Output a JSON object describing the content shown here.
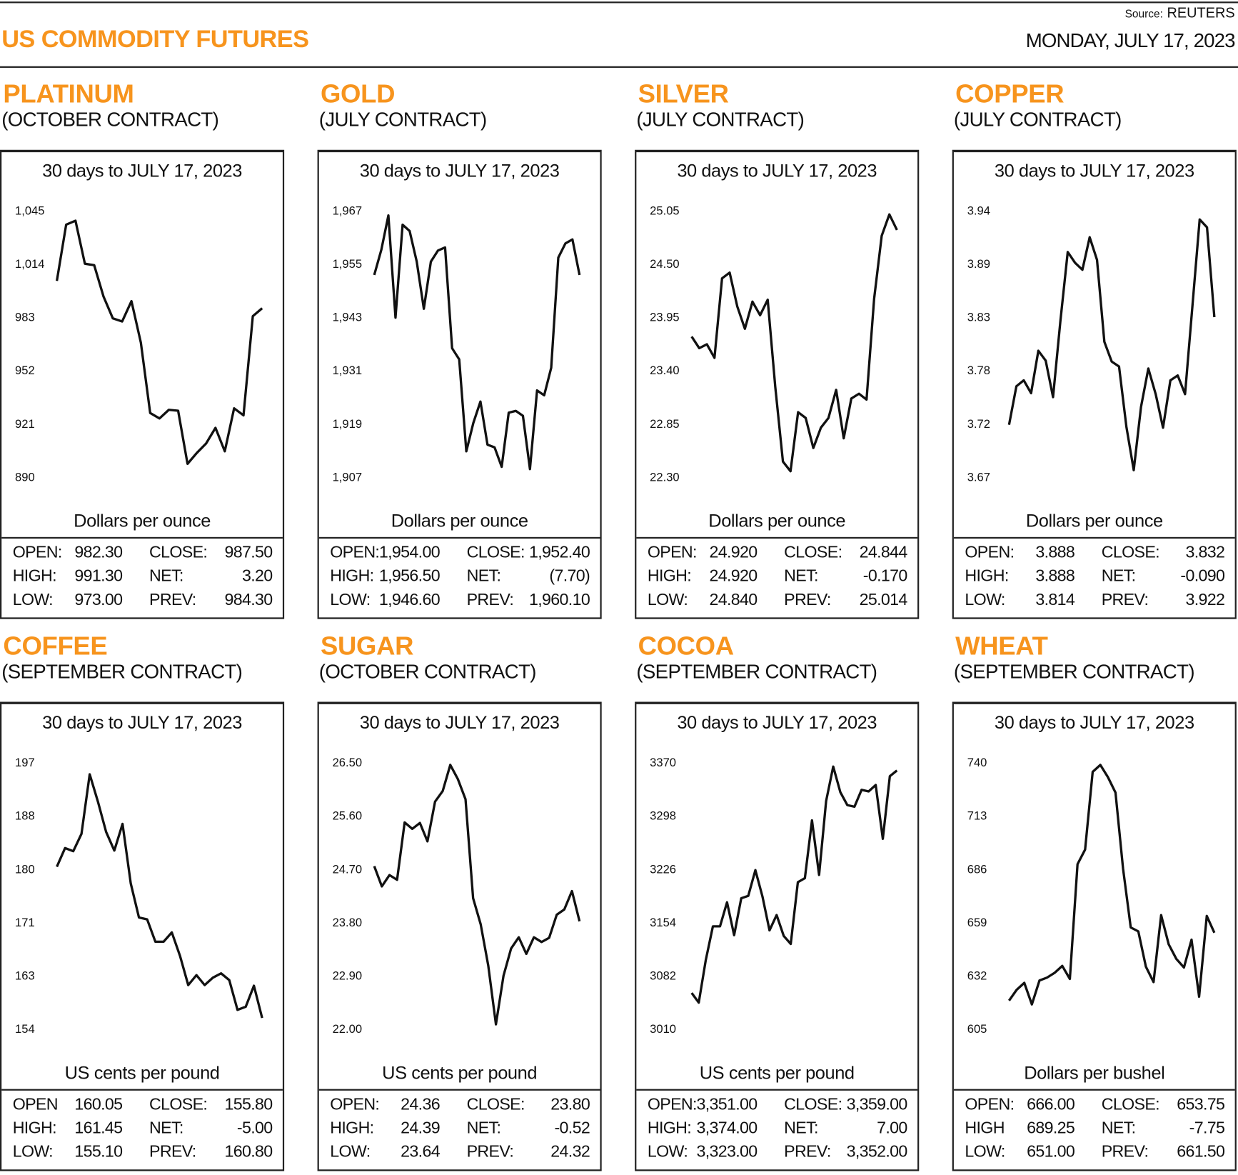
{
  "header": {
    "title": "US COMMODITY FUTURES",
    "source_label": "Source:",
    "source_value": "REUTERS",
    "date": "MONDAY, JULY 17, 2023"
  },
  "colors": {
    "accent": "#F7941D",
    "line": "#111111"
  },
  "chart_data": [
    {
      "type": "line",
      "name": "PLATINUM",
      "contract": "(OCTOBER CONTRACT)",
      "title": "30 days to JULY 17, 2023",
      "ylabel": "Dollars per ounce",
      "yticks": [
        "1,045",
        "1,014",
        "983",
        "952",
        "921",
        "890"
      ],
      "ylim": [
        890,
        1045
      ],
      "values": [
        1004.1,
        1036.8,
        1039.1,
        1014.1,
        1013.2,
        995,
        982.3,
        980.5,
        992.3,
        968.2,
        927.3,
        924.1,
        929.1,
        928.6,
        897.7,
        904.1,
        909.6,
        918.6,
        905,
        930,
        925.9,
        983.6,
        988.2
      ],
      "stats": {
        "open_label": "OPEN:",
        "open": "982.30",
        "high_label": "HIGH:",
        "high": "991.30",
        "low_label": "LOW:",
        "low": "973.00",
        "close_label": "CLOSE:",
        "close": "987.50",
        "net_label": "NET:",
        "net": "3.20",
        "prev_label": "PREV:",
        "prev": "984.30"
      }
    },
    {
      "type": "line",
      "name": "GOLD",
      "contract": "(JULY CONTRACT)",
      "title": "30 days to JULY 17, 2023",
      "ylabel": "Dollars per ounce",
      "yticks": [
        "1,967",
        "1,955",
        "1,943",
        "1,931",
        "1,919",
        "1,907"
      ],
      "ylim": [
        1907,
        1967
      ],
      "values": [
        1952.5,
        1958.2,
        1965.9,
        1942.9,
        1963.8,
        1962.4,
        1955.5,
        1944.9,
        1955.5,
        1958,
        1958.7,
        1936,
        1933.5,
        1912.8,
        1919.2,
        1924,
        1914.3,
        1913.7,
        1909.3,
        1921.5,
        1921.9,
        1920.8,
        1908.8,
        1926.5,
        1925.4,
        1931.6,
        1956.4,
        1959.6,
        1960.5,
        1952.5
      ],
      "stats": {
        "open_label": "OPEN:",
        "open": "1,954.00",
        "high_label": "HIGH:",
        "high": "1,956.50",
        "low_label": "LOW:",
        "low": "1,946.60",
        "close_label": "CLOSE:",
        "close": "1,952.40",
        "net_label": "NET:",
        "net": "(7.70)",
        "prev_label": "PREV:",
        "prev": "1,960.10"
      }
    },
    {
      "type": "line",
      "name": "SILVER",
      "contract": "(JULY CONTRACT)",
      "title": "30 days to JULY 17, 2023",
      "ylabel": "Dollars per ounce",
      "yticks": [
        "25.05",
        "24.50",
        "23.95",
        "23.40",
        "22.85",
        "22.30"
      ],
      "ylim": [
        22.3,
        25.05
      ],
      "values": [
        23.75,
        23.63,
        23.67,
        23.53,
        24.35,
        24.41,
        24.06,
        23.83,
        24.11,
        23.97,
        24.13,
        23.23,
        22.46,
        22.36,
        22.97,
        22.91,
        22.6,
        22.81,
        22.91,
        23.2,
        22.7,
        23.11,
        23.16,
        23.1,
        24.14,
        24.79,
        25.01,
        24.85
      ],
      "stats": {
        "open_label": "OPEN:",
        "open": "24.920",
        "high_label": "HIGH:",
        "high": "24.920",
        "low_label": "LOW:",
        "low": "24.840",
        "close_label": "CLOSE:",
        "close": "24.844",
        "net_label": "NET:",
        "net": "-0.170",
        "prev_label": "PREV:",
        "prev": "25.014"
      }
    },
    {
      "type": "line",
      "name": "COPPER",
      "contract": "(JULY CONTRACT)",
      "title": "30 days to JULY 17, 2023",
      "ylabel": "Dollars per ounce",
      "yticks": [
        "3.94",
        "3.89",
        "3.83",
        "3.78",
        "3.72",
        "3.67"
      ],
      "ylim": [
        3.67,
        3.94
      ],
      "values": [
        3.723,
        3.762,
        3.768,
        3.755,
        3.798,
        3.788,
        3.751,
        3.828,
        3.898,
        3.887,
        3.88,
        3.913,
        3.89,
        3.807,
        3.787,
        3.782,
        3.721,
        3.677,
        3.741,
        3.78,
        3.754,
        3.72,
        3.768,
        3.773,
        3.754,
        3.842,
        3.931,
        3.923,
        3.832
      ],
      "stats": {
        "open_label": "OPEN:",
        "open": "3.888",
        "high_label": "HIGH:",
        "high": "3.888",
        "low_label": "LOW:",
        "low": "3.814",
        "close_label": "CLOSE:",
        "close": "3.832",
        "net_label": "NET:",
        "net": "-0.090",
        "prev_label": "PREV:",
        "prev": "3.922"
      }
    },
    {
      "type": "line",
      "name": "COFFEE",
      "contract": "(SEPTEMBER CONTRACT)",
      "title": "30 days to JULY 17, 2023",
      "ylabel": "US cents per pound",
      "yticks": [
        "197",
        "188",
        "180",
        "171",
        "163",
        "154"
      ],
      "ylim": [
        154,
        197
      ],
      "values": [
        180.2,
        183.2,
        182.7,
        185.5,
        195.1,
        190.7,
        185.8,
        182.8,
        187.1,
        177.5,
        172,
        171.7,
        168.1,
        168.1,
        169.6,
        165.8,
        161.1,
        162.7,
        161.1,
        162.3,
        163,
        161.9,
        157.1,
        157.6,
        161,
        155.8
      ],
      "stats": {
        "open_label": "OPEN",
        "open": "160.05",
        "high_label": "HIGH:",
        "high": "161.45",
        "low_label": "LOW:",
        "low": "155.10",
        "close_label": "CLOSE:",
        "close": "155.80",
        "net_label": "NET:",
        "net": "-5.00",
        "prev_label": "PREV:",
        "prev": "160.80"
      }
    },
    {
      "type": "line",
      "name": "SUGAR",
      "contract": "(OCTOBER CONTRACT)",
      "title": "30 days to JULY 17, 2023",
      "ylabel": "US cents per pound",
      "yticks": [
        "26.50",
        "25.60",
        "24.70",
        "23.80",
        "22.90",
        "22.00"
      ],
      "ylim": [
        22.0,
        26.5
      ],
      "values": [
        24.75,
        24.41,
        24.6,
        24.52,
        25.49,
        25.38,
        25.48,
        25.17,
        25.84,
        26.02,
        26.46,
        26.22,
        25.88,
        24.21,
        23.77,
        23.07,
        22.08,
        22.9,
        23.36,
        23.55,
        23.27,
        23.55,
        23.47,
        23.54,
        23.93,
        24.02,
        24.33,
        23.82
      ],
      "stats": {
        "open_label": "OPEN:",
        "open": "24.36",
        "high_label": "HIGH:",
        "high": "24.39",
        "low_label": "LOW:",
        "low": "23.64",
        "close_label": "CLOSE:",
        "close": "23.80",
        "net_label": "NET:",
        "net": "-0.52",
        "prev_label": "PREV:",
        "prev": "24.32"
      }
    },
    {
      "type": "line",
      "name": "COCOA",
      "contract": "(SEPTEMBER CONTRACT)",
      "title": "30 days to JULY 17, 2023",
      "ylabel": "US cents per pound",
      "yticks": [
        "3370",
        "3298",
        "3226",
        "3154",
        "3082",
        "3010"
      ],
      "ylim": [
        3010,
        3370
      ],
      "values": [
        3058.8,
        3045.8,
        3103.3,
        3148.8,
        3148.8,
        3181.3,
        3136.9,
        3186.7,
        3190,
        3224.7,
        3188.9,
        3143.4,
        3164,
        3135.8,
        3125,
        3208.4,
        3213.9,
        3291.9,
        3218.2,
        3318,
        3364.6,
        3329.9,
        3312.5,
        3310.4,
        3333.1,
        3331,
        3339.6,
        3267,
        3351.6,
        3359.2
      ],
      "stats": {
        "open_label": "OPEN:",
        "open": "3,351.00",
        "high_label": "HIGH:",
        "high": "3,374.00",
        "low_label": "LOW:",
        "low": "3,323.00",
        "close_label": "CLOSE:",
        "close": "3,359.00",
        "net_label": "NET:",
        "net": "7.00",
        "prev_label": "PREV:",
        "prev": "3,352.00"
      }
    },
    {
      "type": "line",
      "name": "WHEAT",
      "contract": "(SEPTEMBER CONTRACT)",
      "title": "30 days to JULY 17, 2023",
      "ylabel": "Dollars per bushel",
      "yticks": [
        "740",
        "713",
        "686",
        "659",
        "632",
        "605"
      ],
      "ylim": [
        605,
        740
      ],
      "values": [
        619.4,
        624.9,
        628.4,
        617.5,
        629.6,
        631.1,
        633.5,
        637,
        630.4,
        688.5,
        695.9,
        735.3,
        738.8,
        732.6,
        724.8,
        686.2,
        656.5,
        654.5,
        636.6,
        628.8,
        662.7,
        647.9,
        640.5,
        636.2,
        650.3,
        621.4,
        662.3,
        653.8
      ],
      "stats": {
        "open_label": "OPEN:",
        "open": "666.00",
        "high_label": "HIGH",
        "high": "689.25",
        "low_label": "LOW:",
        "low": "651.00",
        "close_label": "CLOSE:",
        "close": "653.75",
        "net_label": "NET:",
        "net": "-7.75",
        "prev_label": "PREV:",
        "prev": "661.50"
      }
    }
  ]
}
